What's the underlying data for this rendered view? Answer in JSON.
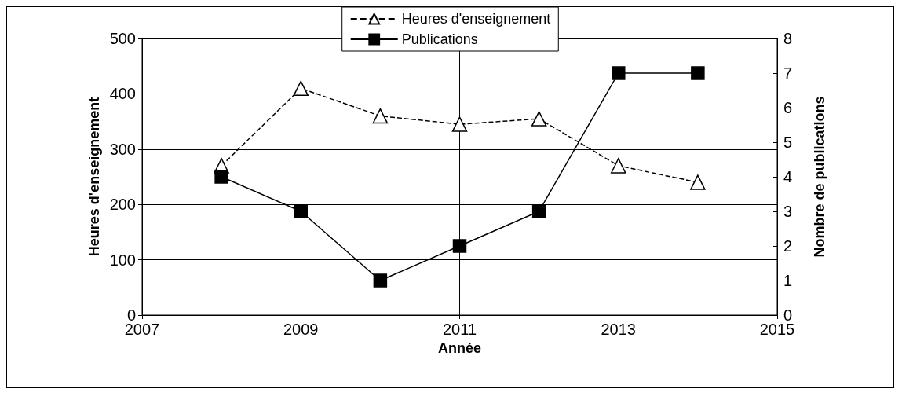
{
  "chart_data": {
    "type": "line",
    "xlabel": "Année",
    "ylabel": "Heures d'enseignement",
    "y2label": "Nombre de publications",
    "x": [
      2008,
      2009,
      2010,
      2011,
      2012,
      2013,
      2014
    ],
    "series": [
      {
        "name": "Heures d'enseignement",
        "color": "#000000",
        "values": [
          270,
          410,
          360,
          345,
          355,
          270,
          240
        ],
        "marker": "triangle",
        "line_style": "dashed"
      },
      {
        "name": "Publications",
        "color": "#000000",
        "values": [
          4,
          3,
          1,
          2,
          3,
          7,
          7
        ],
        "marker": "square",
        "line_style": "solid",
        "axis": "y2"
      }
    ],
    "xlim": [
      2007,
      2015
    ],
    "xticks": [
      2007,
      2009,
      2011,
      2013,
      2015
    ],
    "ylim": [
      0,
      500
    ],
    "yticks": [
      0,
      100,
      200,
      300,
      400,
      500
    ],
    "y2lim": [
      0,
      8
    ],
    "y2ticks": [
      0,
      1,
      2,
      3,
      4,
      5,
      6,
      7,
      8
    ],
    "grid": true,
    "legend": "top"
  }
}
